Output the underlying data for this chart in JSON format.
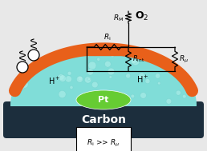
{
  "bg_color": "#e8e8e8",
  "carbon_color": "#1c2e3d",
  "ionomer_color": "#80ddd8",
  "ionomer_alpha": 1.0,
  "orange_layer_color": "#e8601a",
  "pt_color": "#66cc33",
  "carbon_text": "Carbon",
  "carbon_text_color": "white",
  "carbon_text_size": 10,
  "pt_text": "Pt",
  "pt_text_color": "white",
  "pt_text_size": 8,
  "o2_text": "O$_2$",
  "label_Rm": "$R_{\\mathrm{M}}$",
  "label_Ri": "$R_{\\mathrm{i}}$",
  "label_Rmu": "$R_{\\mu}$",
  "label_Rint": "$R_{\\mathrm{int}}$",
  "label_Hp_left": "H$^+$",
  "label_Hp_right": "H$^+$",
  "bottom_label": "$R_{\\mathrm{i}}$ >> $R_{\\mu}$",
  "resistor_color": "black",
  "wire_color": "black"
}
